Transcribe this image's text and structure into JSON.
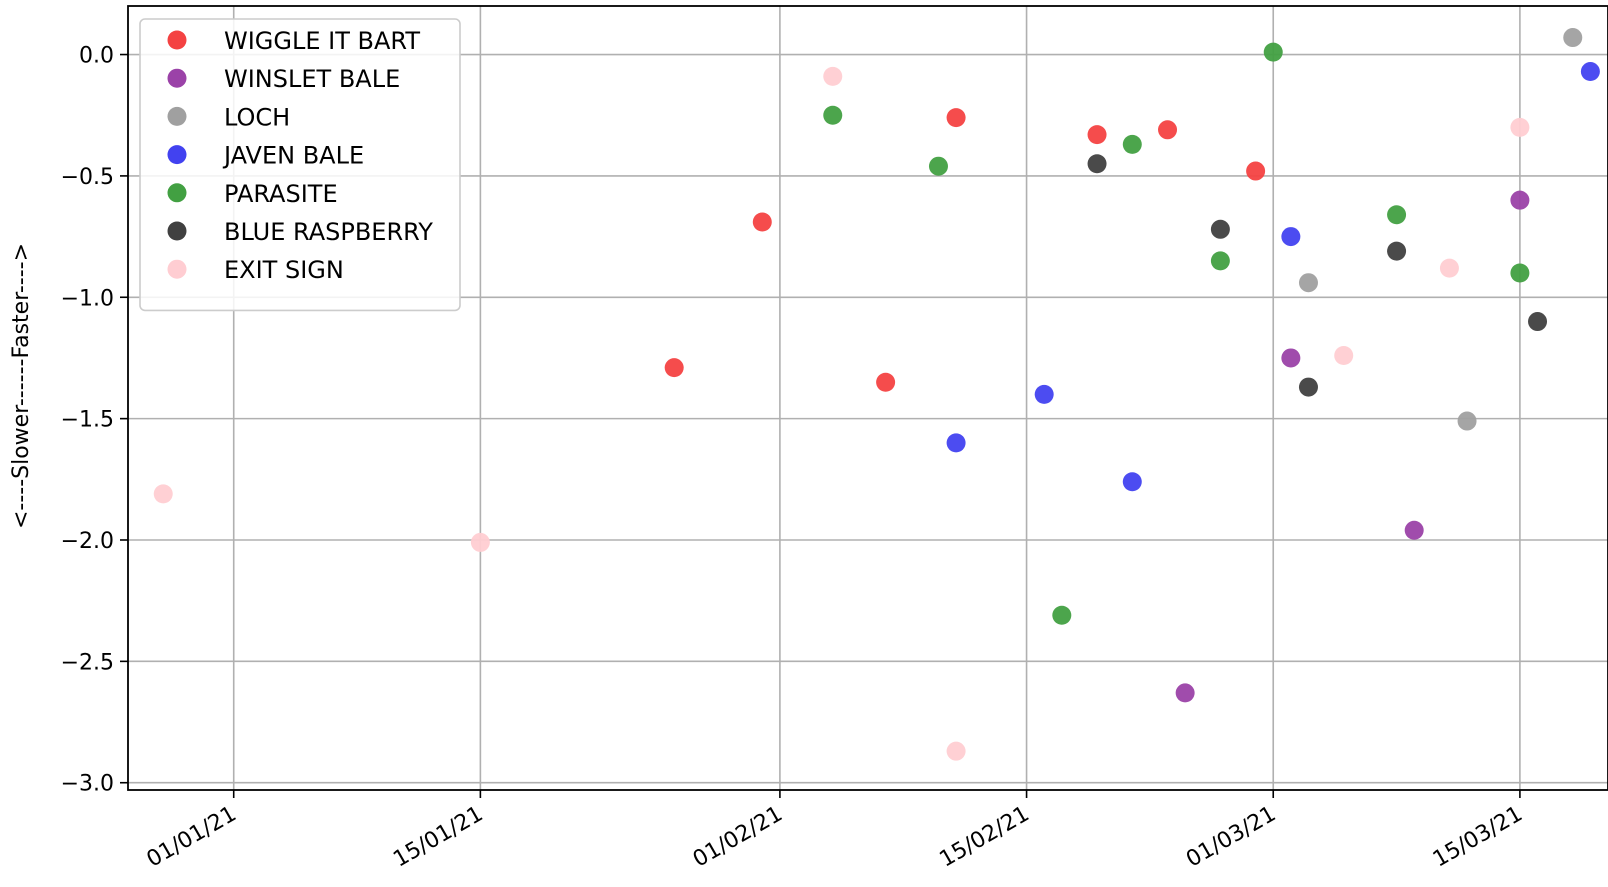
{
  "chart_data": {
    "type": "scatter",
    "title": "",
    "xlabel": "",
    "ylabel": "<----Slower------Faster---->",
    "x_is_date": true,
    "xlim": [
      "2020-12-26",
      "2021-03-20"
    ],
    "ylim": [
      -3.03,
      0.2
    ],
    "x_ticks": [
      {
        "date": "2021-01-01",
        "label": "01/01/21"
      },
      {
        "date": "2021-01-15",
        "label": "15/01/21"
      },
      {
        "date": "2021-02-01",
        "label": "01/02/21"
      },
      {
        "date": "2021-02-15",
        "label": "15/02/21"
      },
      {
        "date": "2021-03-01",
        "label": "01/03/21"
      },
      {
        "date": "2021-03-15",
        "label": "15/03/21"
      }
    ],
    "y_ticks": [
      {
        "value": 0.0,
        "label": "0.0"
      },
      {
        "value": -0.5,
        "label": "−0.5"
      },
      {
        "value": -1.0,
        "label": "−1.0"
      },
      {
        "value": -1.5,
        "label": "−1.5"
      },
      {
        "value": -2.0,
        "label": "−2.0"
      },
      {
        "value": -2.5,
        "label": "−2.5"
      },
      {
        "value": -3.0,
        "label": "−3.0"
      }
    ],
    "grid": true,
    "legend_position": "top-left",
    "series": [
      {
        "name": "WIGGLE IT BART",
        "color": "#f44242",
        "points": [
          {
            "x": "2021-01-26",
            "y": -1.29
          },
          {
            "x": "2021-01-31",
            "y": -0.69
          },
          {
            "x": "2021-02-07",
            "y": -1.35
          },
          {
            "x": "2021-02-11",
            "y": -0.26
          },
          {
            "x": "2021-02-19",
            "y": -0.33
          },
          {
            "x": "2021-02-23",
            "y": -0.31
          },
          {
            "x": "2021-02-28",
            "y": -0.48
          }
        ]
      },
      {
        "name": "WINSLET BALE",
        "color": "#9b42a8",
        "points": [
          {
            "x": "2021-02-24",
            "y": -2.63
          },
          {
            "x": "2021-03-02",
            "y": -1.25
          },
          {
            "x": "2021-03-09",
            "y": -1.96
          },
          {
            "x": "2021-03-15",
            "y": -0.6
          }
        ]
      },
      {
        "name": "LOCH",
        "color": "#a0a0a0",
        "points": [
          {
            "x": "2021-03-03",
            "y": -0.94
          },
          {
            "x": "2021-03-12",
            "y": -1.51
          },
          {
            "x": "2021-03-18",
            "y": 0.07
          }
        ]
      },
      {
        "name": "JAVEN BALE",
        "color": "#4242f0",
        "points": [
          {
            "x": "2021-02-11",
            "y": -1.6
          },
          {
            "x": "2021-02-16",
            "y": -1.4
          },
          {
            "x": "2021-02-21",
            "y": -1.76
          },
          {
            "x": "2021-03-02",
            "y": -0.75
          },
          {
            "x": "2021-03-19",
            "y": -0.07
          }
        ]
      },
      {
        "name": "PARASITE",
        "color": "#42a042",
        "points": [
          {
            "x": "2021-02-04",
            "y": -0.25
          },
          {
            "x": "2021-02-10",
            "y": -0.46
          },
          {
            "x": "2021-02-17",
            "y": -2.31
          },
          {
            "x": "2021-02-21",
            "y": -0.37
          },
          {
            "x": "2021-02-26",
            "y": -0.85
          },
          {
            "x": "2021-03-01",
            "y": 0.01
          },
          {
            "x": "2021-03-08",
            "y": -0.66
          },
          {
            "x": "2021-03-15",
            "y": -0.9
          }
        ]
      },
      {
        "name": "BLUE RASPBERRY",
        "color": "#404040",
        "points": [
          {
            "x": "2021-02-19",
            "y": -0.45
          },
          {
            "x": "2021-02-26",
            "y": -0.72
          },
          {
            "x": "2021-03-03",
            "y": -1.37
          },
          {
            "x": "2021-03-08",
            "y": -0.81
          },
          {
            "x": "2021-03-16",
            "y": -1.1
          }
        ]
      },
      {
        "name": "EXIT SIGN",
        "color": "#ffcdd2",
        "points": [
          {
            "x": "2020-12-28",
            "y": -1.81
          },
          {
            "x": "2021-01-15",
            "y": -2.01
          },
          {
            "x": "2021-02-04",
            "y": -0.09
          },
          {
            "x": "2021-02-11",
            "y": -2.87
          },
          {
            "x": "2021-03-05",
            "y": -1.24
          },
          {
            "x": "2021-03-11",
            "y": -0.88
          },
          {
            "x": "2021-03-15",
            "y": -0.3
          }
        ]
      }
    ]
  }
}
